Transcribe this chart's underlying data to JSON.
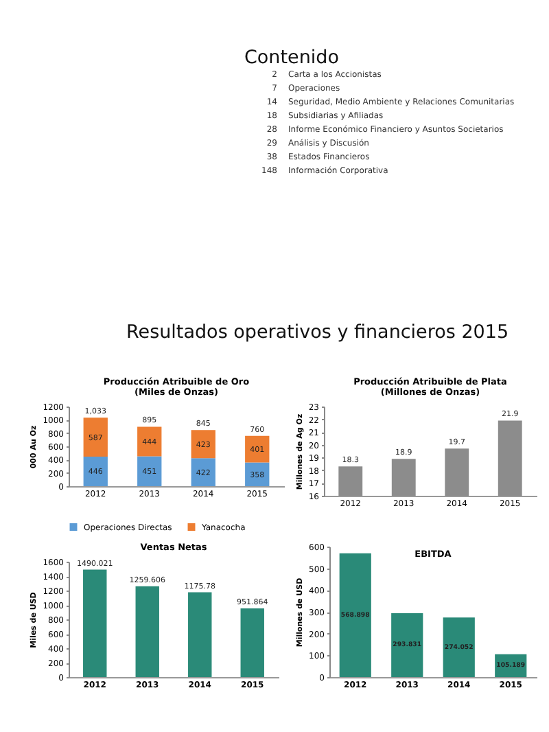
{
  "chart_data": [
    {
      "type": "other",
      "title": "Contenido",
      "annotations": [
        "2 Carta a los Accionistas",
        "7 Operaciones",
        "14 Seguridad, Medio Ambiente y Relaciones Comunitarias",
        "18 Subsidiarias y Afiliadas",
        "28 Informe Económico Financiero y Asuntos Societarios",
        "29 Análisis y Discusión",
        "38 Estados Financieros",
        "148 Información Corporativa"
      ]
    },
    {
      "type": "other",
      "title": "Resultados operativos y financieros 2015"
    },
    {
      "type": "bar",
      "title": "Producción Atribuible de Oro",
      "subtitle": "(Miles de Onzas)",
      "ylabel": "000 Au Oz",
      "categories": [
        "2012",
        "2013",
        "2014",
        "2015"
      ],
      "stacked": true,
      "legend": "bottom",
      "data_labels": true,
      "totals": [
        "1,033",
        "895",
        "845",
        "760"
      ],
      "ylim": [
        0,
        1200
      ],
      "yticks": [
        0,
        200,
        400,
        600,
        800,
        1000,
        1200
      ],
      "series": [
        {
          "name": "Operaciones Directas",
          "color": "#5b9bd5",
          "values": [
            446,
            451,
            422,
            358
          ]
        },
        {
          "name": "Yanacocha",
          "color": "#ed7d31",
          "values": [
            587,
            444,
            423,
            401
          ]
        }
      ]
    },
    {
      "type": "bar",
      "title": "Producción Atribuible de Plata",
      "subtitle": "(Millones de Onzas)",
      "ylabel": "Millones de Ag Oz",
      "categories": [
        "2012",
        "2013",
        "2014",
        "2015"
      ],
      "data_labels": true,
      "ylim": [
        16,
        23
      ],
      "yticks": [
        16,
        17,
        18,
        19,
        20,
        21,
        22,
        23
      ],
      "color": "#8c8c8c",
      "values": [
        18.3,
        18.9,
        19.7,
        21.9
      ]
    },
    {
      "type": "bar",
      "title": "Ventas Netas",
      "ylabel": "Miles de USD",
      "categories": [
        "2012",
        "2013",
        "2014",
        "2015"
      ],
      "data_labels": true,
      "ylim": [
        0,
        1600
      ],
      "yticks": [
        0,
        200,
        400,
        600,
        800,
        1000,
        1200,
        1400,
        1600
      ],
      "color": "#2a8a78",
      "values": [
        1490.021,
        1259.606,
        1175.78,
        951.864
      ]
    },
    {
      "type": "bar",
      "title": "EBITDA",
      "ylabel": "Millones de USD",
      "categories": [
        "2012",
        "2013",
        "2014",
        "2015"
      ],
      "data_labels": true,
      "ylim": [
        0,
        600
      ],
      "yticks": [
        0,
        100,
        200,
        300,
        400,
        500,
        600
      ],
      "color": "#2a8a78",
      "values": [
        568.898,
        293.831,
        274.052,
        105.189
      ]
    }
  ]
}
